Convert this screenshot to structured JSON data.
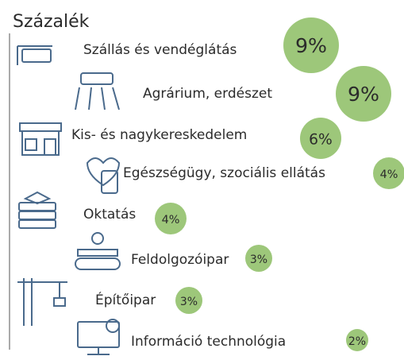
{
  "chart_data": {
    "type": "bubble",
    "title": "Százalék",
    "categories": [
      "Szállás és vendéglátás",
      "Agrárium, erdészet",
      "Kis- és nagykereskedelem",
      "Egészségügy, szociális ellátás",
      "Oktatás",
      "Feldolgozóipar",
      "Építőipar",
      "Információ technológia"
    ],
    "values": [
      9,
      9,
      6,
      4,
      4,
      3,
      3,
      2
    ],
    "value_labels": [
      "9%",
      "9%",
      "6%",
      "4%",
      "4%",
      "3%",
      "3%",
      "2%"
    ],
    "color": "#9dc77a"
  }
}
